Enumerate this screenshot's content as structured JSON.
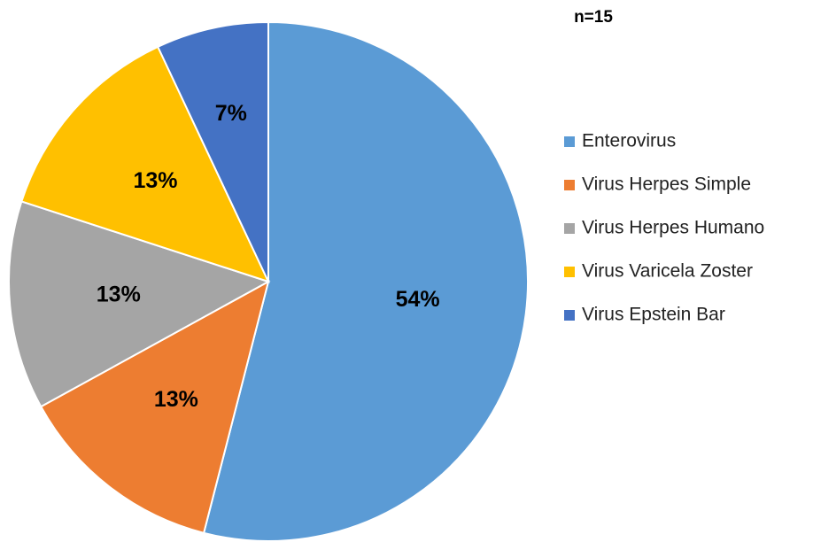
{
  "chart_data": {
    "type": "pie",
    "title": "n=15",
    "categories": [
      "Enterovirus",
      "Virus Herpes Simple",
      "Virus Herpes Humano",
      "Virus Varicela Zoster",
      "Virus Epstein Bar"
    ],
    "values": [
      54,
      13,
      13,
      13,
      7
    ],
    "value_labels": [
      "54%",
      "13%",
      "13%",
      "13%",
      "7%"
    ],
    "colors": [
      "#5b9bd5",
      "#ed7d31",
      "#a5a5a5",
      "#ffc000",
      "#4472c4"
    ],
    "legend": "right"
  }
}
